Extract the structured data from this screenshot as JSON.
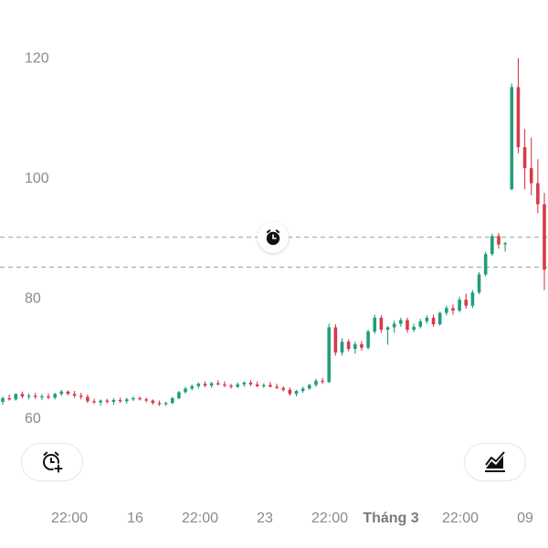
{
  "chart_data": {
    "type": "candlestick",
    "y_ticks": [
      "120",
      "100",
      "80",
      "60"
    ],
    "x_ticks": [
      {
        "label": "22:00",
        "bold": false
      },
      {
        "label": "16",
        "bold": false
      },
      {
        "label": "22:00",
        "bold": false
      },
      {
        "label": "23",
        "bold": false
      },
      {
        "label": "22:00",
        "bold": false
      },
      {
        "label": "Tháng 3",
        "bold": true
      },
      {
        "label": "22:00",
        "bold": false
      },
      {
        "label": "09",
        "bold": false
      }
    ],
    "ylim": [
      59,
      121
    ],
    "alert_levels": [
      90,
      85
    ],
    "colors": {
      "up": "#1f9e7a",
      "down": "#d63a4a",
      "grid_dash": "#9a9a9a"
    },
    "candles": [
      [
        62.6,
        63.5,
        62.1,
        63.2
      ],
      [
        63.2,
        63.8,
        62.8,
        63.0
      ],
      [
        63.0,
        64.0,
        62.8,
        63.9
      ],
      [
        63.9,
        64.3,
        63.2,
        63.5
      ],
      [
        63.5,
        64.0,
        63.0,
        63.6
      ],
      [
        63.6,
        64.1,
        63.1,
        63.4
      ],
      [
        63.4,
        63.9,
        62.9,
        63.5
      ],
      [
        63.5,
        64.0,
        63.0,
        63.3
      ],
      [
        63.3,
        64.1,
        63.0,
        63.9
      ],
      [
        63.9,
        64.6,
        63.6,
        64.3
      ],
      [
        64.3,
        64.5,
        63.7,
        63.9
      ],
      [
        63.9,
        64.4,
        63.3,
        63.6
      ],
      [
        63.6,
        64.1,
        63.0,
        63.4
      ],
      [
        63.4,
        63.8,
        62.4,
        62.7
      ],
      [
        62.7,
        63.1,
        62.2,
        62.5
      ],
      [
        62.5,
        63.0,
        62.0,
        62.8
      ],
      [
        62.8,
        63.1,
        62.3,
        62.6
      ],
      [
        62.6,
        63.2,
        62.1,
        62.9
      ],
      [
        62.9,
        63.3,
        62.4,
        62.7
      ],
      [
        62.7,
        63.3,
        62.3,
        63.0
      ],
      [
        63.0,
        63.5,
        62.7,
        63.2
      ],
      [
        63.2,
        63.5,
        62.8,
        63.0
      ],
      [
        63.0,
        63.3,
        62.5,
        62.8
      ],
      [
        62.8,
        63.0,
        62.1,
        62.4
      ],
      [
        62.4,
        62.8,
        61.9,
        62.2
      ],
      [
        62.2,
        62.6,
        61.9,
        62.4
      ],
      [
        62.4,
        63.4,
        62.2,
        63.2
      ],
      [
        63.2,
        64.4,
        63.0,
        64.2
      ],
      [
        64.2,
        65.1,
        64.0,
        64.8
      ],
      [
        64.8,
        65.5,
        64.5,
        65.2
      ],
      [
        65.2,
        65.8,
        64.8,
        65.6
      ],
      [
        65.6,
        66.0,
        65.0,
        65.3
      ],
      [
        65.3,
        65.9,
        64.9,
        65.7
      ],
      [
        65.7,
        66.2,
        65.3,
        65.5
      ],
      [
        65.5,
        66.0,
        65.0,
        65.3
      ],
      [
        65.3,
        65.6,
        64.8,
        65.1
      ],
      [
        65.1,
        65.8,
        64.9,
        65.5
      ],
      [
        65.5,
        66.0,
        65.1,
        65.8
      ],
      [
        65.8,
        66.2,
        65.2,
        65.5
      ],
      [
        65.5,
        66.0,
        65.0,
        65.2
      ],
      [
        65.2,
        65.7,
        64.9,
        65.4
      ],
      [
        65.4,
        65.9,
        65.0,
        65.1
      ],
      [
        65.1,
        65.6,
        64.7,
        64.9
      ],
      [
        64.9,
        65.2,
        64.3,
        64.6
      ],
      [
        64.6,
        65.0,
        63.6,
        63.9
      ],
      [
        63.9,
        64.6,
        63.5,
        64.4
      ],
      [
        64.4,
        65.1,
        64.1,
        64.8
      ],
      [
        64.8,
        65.6,
        64.6,
        65.4
      ],
      [
        65.4,
        66.4,
        65.1,
        66.1
      ],
      [
        66.1,
        66.6,
        65.6,
        65.9
      ],
      [
        65.9,
        75.6,
        65.7,
        75.0
      ],
      [
        75.0,
        75.5,
        70.3,
        70.8
      ],
      [
        70.8,
        73.2,
        70.3,
        72.6
      ],
      [
        72.6,
        73.0,
        71.0,
        71.4
      ],
      [
        71.4,
        72.6,
        70.6,
        72.2
      ],
      [
        72.2,
        72.7,
        71.1,
        71.6
      ],
      [
        71.6,
        74.6,
        71.3,
        74.3
      ],
      [
        74.3,
        77.1,
        73.9,
        76.6
      ],
      [
        76.6,
        77.0,
        74.1,
        74.6
      ],
      [
        74.6,
        75.2,
        72.1,
        75.0
      ],
      [
        75.0,
        76.1,
        74.1,
        75.6
      ],
      [
        75.6,
        76.6,
        75.1,
        76.2
      ],
      [
        76.2,
        76.6,
        74.1,
        74.6
      ],
      [
        74.6,
        75.6,
        74.2,
        75.1
      ],
      [
        75.1,
        76.4,
        74.8,
        76.0
      ],
      [
        76.0,
        77.0,
        75.6,
        76.6
      ],
      [
        76.6,
        77.1,
        75.1,
        75.5
      ],
      [
        75.5,
        77.6,
        75.3,
        77.4
      ],
      [
        77.4,
        78.6,
        77.0,
        78.2
      ],
      [
        78.2,
        78.8,
        77.1,
        77.8
      ],
      [
        77.8,
        80.1,
        77.5,
        79.6
      ],
      [
        79.6,
        80.6,
        78.1,
        78.6
      ],
      [
        78.6,
        81.2,
        78.2,
        80.8
      ],
      [
        80.8,
        84.2,
        80.5,
        83.8
      ],
      [
        83.8,
        87.6,
        83.5,
        87.2
      ],
      [
        87.2,
        90.6,
        86.9,
        90.2
      ],
      [
        90.2,
        90.7,
        88.1,
        88.8
      ],
      [
        88.8,
        89.2,
        87.6,
        89.0
      ],
      [
        98.0,
        115.6,
        97.8,
        115.0
      ],
      [
        115.0,
        119.8,
        104.0,
        105.0
      ],
      [
        105.0,
        108.0,
        98.0,
        101.5
      ],
      [
        101.5,
        106.6,
        97.0,
        99.0
      ],
      [
        99.0,
        103.0,
        94.0,
        95.5
      ],
      [
        95.5,
        97.4,
        81.2,
        84.6
      ]
    ]
  },
  "icons": {
    "alarm_marker": "alarm-clock-icon",
    "add_alarm": "alarm-add-icon",
    "chart_type": "area-chart-icon"
  }
}
